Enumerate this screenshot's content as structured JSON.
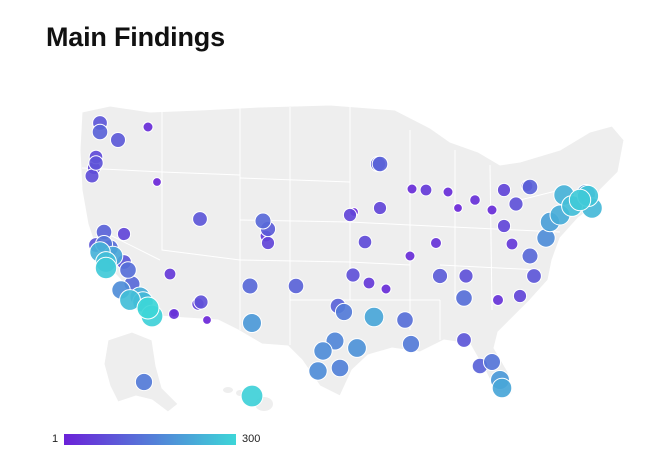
{
  "title": "Main Findings",
  "legend": {
    "min_label": "1",
    "max_label": "300",
    "low_color": "#6b21d8",
    "high_color": "#3dd6d8"
  },
  "map": {
    "land_color": "#eeeeee",
    "border_color": "#ffffff",
    "points": [
      {
        "name": "bellingham",
        "v": 90
      },
      {
        "name": "seattle-1",
        "v": 110
      },
      {
        "name": "seattle-2",
        "v": 95
      },
      {
        "name": "spokane",
        "v": 20
      },
      {
        "name": "tacoma",
        "v": 70
      },
      {
        "name": "portland-1",
        "v": 85
      },
      {
        "name": "portland-2",
        "v": 60
      },
      {
        "name": "salem",
        "v": 75
      },
      {
        "name": "eugene",
        "v": 110
      },
      {
        "name": "medford",
        "v": 90
      },
      {
        "name": "boise",
        "v": 10
      },
      {
        "name": "redding",
        "v": 140
      },
      {
        "name": "sacramento",
        "v": 130
      },
      {
        "name": "sf-1",
        "v": 240
      },
      {
        "name": "sf-2",
        "v": 260
      },
      {
        "name": "oakland",
        "v": 220
      },
      {
        "name": "san-jose",
        "v": 280
      },
      {
        "name": "reno",
        "v": 60
      },
      {
        "name": "fresno",
        "v": 130
      },
      {
        "name": "fresno-2",
        "v": 90
      },
      {
        "name": "bakersfield",
        "v": 120
      },
      {
        "name": "santa-barbara",
        "v": 180
      },
      {
        "name": "la-1",
        "v": 230
      },
      {
        "name": "la-2",
        "v": 260
      },
      {
        "name": "la-3",
        "v": 300
      },
      {
        "name": "anaheim",
        "v": 250
      },
      {
        "name": "san-diego",
        "v": 290
      },
      {
        "name": "las-vegas",
        "v": 40
      },
      {
        "name": "elko",
        "v": 90
      },
      {
        "name": "salt-lake-1",
        "v": 120
      },
      {
        "name": "salt-lake-2",
        "v": 100
      },
      {
        "name": "provo",
        "v": 60
      },
      {
        "name": "orem",
        "v": 40
      },
      {
        "name": "phoenix",
        "v": 50
      },
      {
        "name": "phoenix-2",
        "v": 80
      },
      {
        "name": "tucson",
        "v": 10
      },
      {
        "name": "tucson-2",
        "v": 30
      },
      {
        "name": "flagstaff",
        "v": 5
      },
      {
        "name": "albuquerque",
        "v": 120
      },
      {
        "name": "santa-fe",
        "v": 110
      },
      {
        "name": "el-paso",
        "v": 200
      },
      {
        "name": "denver",
        "v": 60
      },
      {
        "name": "cheyenne",
        "v": 10
      },
      {
        "name": "omaha",
        "v": 60
      },
      {
        "name": "kansas-city",
        "v": 70
      },
      {
        "name": "wichita",
        "v": 80
      },
      {
        "name": "oklahoma-city",
        "v": 40
      },
      {
        "name": "tulsa",
        "v": 20
      },
      {
        "name": "dallas-1",
        "v": 110
      },
      {
        "name": "dallas-2",
        "v": 150
      },
      {
        "name": "fort-worth",
        "v": 170
      },
      {
        "name": "austin",
        "v": 180
      },
      {
        "name": "san-antonio",
        "v": 180
      },
      {
        "name": "houston-1",
        "v": 160
      },
      {
        "name": "houston-2",
        "v": 190
      },
      {
        "name": "corpus-christi",
        "v": 220
      },
      {
        "name": "new-orleans",
        "v": 130
      },
      {
        "name": "baton-rouge",
        "v": 150
      },
      {
        "name": "minneapolis",
        "v": 100
      },
      {
        "name": "des-moines",
        "v": 20
      },
      {
        "name": "madison",
        "v": 20
      },
      {
        "name": "milwaukee",
        "v": 40
      },
      {
        "name": "chicago-1",
        "v": 20
      },
      {
        "name": "chicago-2",
        "v": 25
      },
      {
        "name": "detroit",
        "v": 60
      },
      {
        "name": "detroit-2",
        "v": 40
      },
      {
        "name": "cleveland",
        "v": 80
      },
      {
        "name": "columbus",
        "v": 20
      },
      {
        "name": "indianapolis",
        "v": 10
      },
      {
        "name": "st-louis",
        "v": 30
      },
      {
        "name": "memphis",
        "v": 100
      },
      {
        "name": "nashville",
        "v": 80
      },
      {
        "name": "atlanta",
        "v": 130
      },
      {
        "name": "birmingham",
        "v": 30
      },
      {
        "name": "jacksonville",
        "v": 90
      },
      {
        "name": "orlando",
        "v": 110
      },
      {
        "name": "tampa",
        "v": 140
      },
      {
        "name": "miami",
        "v": 200
      },
      {
        "name": "miami-2",
        "v": 220
      },
      {
        "name": "charlotte",
        "v": 60
      },
      {
        "name": "raleigh",
        "v": 90
      },
      {
        "name": "richmond",
        "v": 120
      },
      {
        "name": "dc",
        "v": 180
      },
      {
        "name": "baltimore",
        "v": 210
      },
      {
        "name": "philadelphia",
        "v": 230
      },
      {
        "name": "nyc-1",
        "v": 260
      },
      {
        "name": "nyc-2",
        "v": 280
      },
      {
        "name": "hartford",
        "v": 200
      },
      {
        "name": "boston-1",
        "v": 250
      },
      {
        "name": "boston-2",
        "v": 270
      },
      {
        "name": "providence",
        "v": 240
      },
      {
        "name": "albany",
        "v": 110
      },
      {
        "name": "buffalo",
        "v": 60
      },
      {
        "name": "pittsburgh",
        "v": 40
      },
      {
        "name": "portland-me",
        "v": 110
      },
      {
        "name": "anchorage",
        "v": 150
      },
      {
        "name": "honolulu",
        "v": 290
      }
    ]
  }
}
